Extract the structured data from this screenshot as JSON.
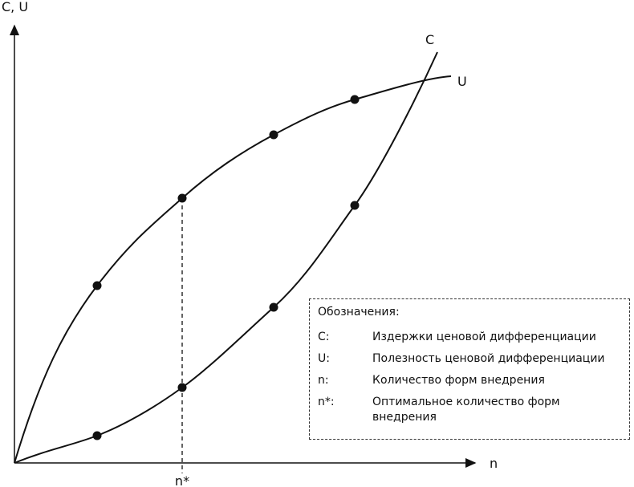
{
  "axes": {
    "y_label": "C, U",
    "x_label": "n",
    "x_marker": "n*"
  },
  "curves": [
    {
      "label": "C"
    },
    {
      "label": "U"
    }
  ],
  "legend": {
    "title": "Обозначения:",
    "items": [
      {
        "key": "C:",
        "text": "Издержки ценовой дифференциации"
      },
      {
        "key": "U:",
        "text": "Полезность ценовой дифференциации"
      },
      {
        "key": "n:",
        "text": "Количество форм внедрения"
      },
      {
        "key": "n*:",
        "text": "Оптимальное количество форм внедрения"
      }
    ]
  }
}
